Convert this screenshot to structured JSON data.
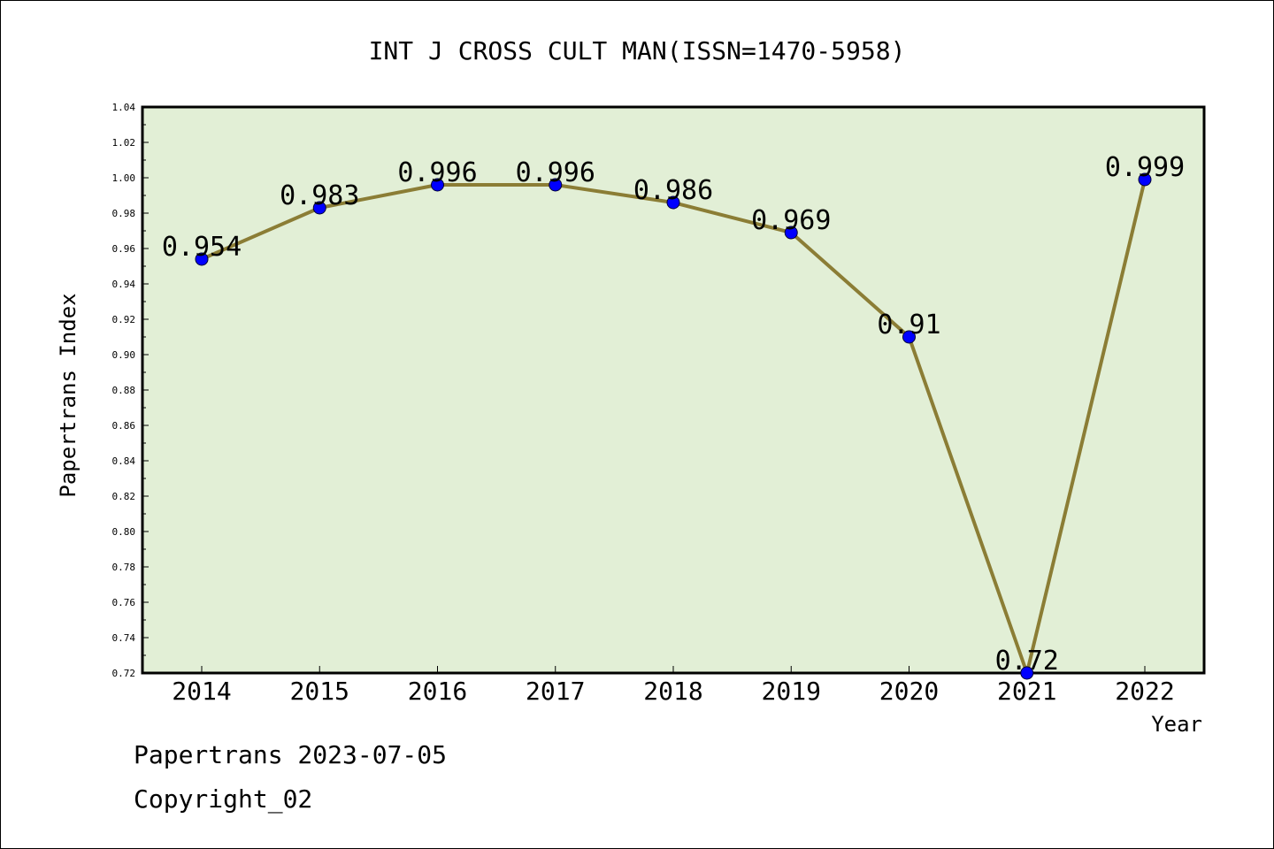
{
  "chart_data": {
    "type": "line",
    "title": "INT J CROSS CULT MAN(ISSN=1470-5958)",
    "xlabel": "Year",
    "ylabel": "Papertrans Index",
    "categories": [
      "2014",
      "2015",
      "2016",
      "2017",
      "2018",
      "2019",
      "2020",
      "2021",
      "2022"
    ],
    "values": [
      0.954,
      0.983,
      0.996,
      0.996,
      0.986,
      0.969,
      0.91,
      0.72,
      0.999
    ],
    "data_labels": [
      "0.954",
      "0.983",
      "0.996",
      "0.996",
      "0.986",
      "0.969",
      "0.91",
      "0.72",
      "0.999"
    ],
    "ylim": [
      0.72,
      1.04
    ],
    "y_ticks": [
      "0.72",
      "0.74",
      "0.76",
      "0.78",
      "0.80",
      "0.82",
      "0.84",
      "0.86",
      "0.88",
      "0.90",
      "0.92",
      "0.94",
      "0.96",
      "0.98",
      "1.00",
      "1.02",
      "1.04"
    ],
    "grid": false,
    "legend": "none",
    "colors": {
      "line": "#8b7d35",
      "marker": "#0000ff",
      "plot_background": "#e2efd6",
      "axes": "#000000"
    }
  },
  "footer": {
    "date_line": "Papertrans 2023-07-05",
    "copyright_line": "Copyright_02"
  }
}
